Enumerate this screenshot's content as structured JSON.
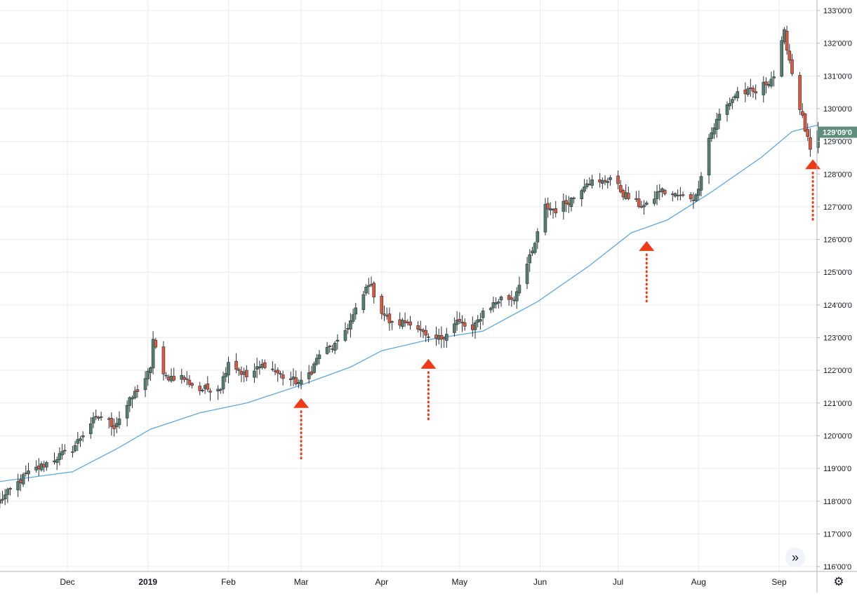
{
  "chart_data": {
    "type": "candlestick",
    "title": "",
    "x_tick_labels": [
      "Dec",
      "2019",
      "Feb",
      "Mar",
      "Apr",
      "May",
      "Jun",
      "Jul",
      "Aug",
      "Sep"
    ],
    "x_tick_dates": [
      "2018-12-01",
      "2019-01-01",
      "2019-02-01",
      "2019-03-01",
      "2019-04-01",
      "2019-05-01",
      "2019-06-01",
      "2019-07-01",
      "2019-08-01",
      "2019-09-01"
    ],
    "y_tick_labels": [
      "116'00'0",
      "117'00'0",
      "118'00'0",
      "119'00'0",
      "120'00'0",
      "121'00'0",
      "122'00'0",
      "123'00'0",
      "124'00'0",
      "125'00'0",
      "126'00'0",
      "127'00'0",
      "128'00'0",
      "129'00'0",
      "130'00'0",
      "131'00'0",
      "132'00'0",
      "133'00'0"
    ],
    "ylim": [
      116,
      133.2
    ],
    "grid": true,
    "last_price_label": "129'09'0",
    "up_color": "#53816b",
    "down_color": "#e0573a",
    "ma_color": "#5aa9e6",
    "marker_color": "#f03a17",
    "trend_points": [
      [
        "2018-11-05",
        118.0
      ],
      [
        "2018-11-15",
        118.8
      ],
      [
        "2018-11-26",
        119.3
      ],
      [
        "2018-12-03",
        119.6
      ],
      [
        "2018-12-10",
        120.4
      ],
      [
        "2018-12-14",
        120.6
      ],
      [
        "2018-12-19",
        120.3
      ],
      [
        "2018-12-27",
        121.3
      ],
      [
        "2019-01-02",
        122.0
      ],
      [
        "2019-01-03",
        123.0
      ],
      [
        "2019-01-07",
        121.8
      ],
      [
        "2019-01-14",
        121.8
      ],
      [
        "2019-01-21",
        121.4
      ],
      [
        "2019-01-29",
        121.5
      ],
      [
        "2019-02-01",
        122.3
      ],
      [
        "2019-02-08",
        121.8
      ],
      [
        "2019-02-15",
        122.2
      ],
      [
        "2019-02-22",
        121.8
      ],
      [
        "2019-03-01",
        121.6
      ],
      [
        "2019-03-05",
        122.0
      ],
      [
        "2019-03-08",
        122.5
      ],
      [
        "2019-03-15",
        122.8
      ],
      [
        "2019-03-20",
        123.5
      ],
      [
        "2019-03-25",
        124.3
      ],
      [
        "2019-03-27",
        124.7
      ],
      [
        "2019-04-01",
        123.8
      ],
      [
        "2019-04-05",
        123.4
      ],
      [
        "2019-04-12",
        123.5
      ],
      [
        "2019-04-15",
        123.3
      ],
      [
        "2019-04-19",
        122.9
      ],
      [
        "2019-04-24",
        123.0
      ],
      [
        "2019-04-30",
        123.5
      ],
      [
        "2019-05-06",
        123.2
      ],
      [
        "2019-05-10",
        123.8
      ],
      [
        "2019-05-17",
        124.2
      ],
      [
        "2019-05-22",
        124.2
      ],
      [
        "2019-05-24",
        124.7
      ],
      [
        "2019-05-29",
        125.6
      ],
      [
        "2019-06-03",
        127.0
      ],
      [
        "2019-06-07",
        126.9
      ],
      [
        "2019-06-14",
        127.3
      ],
      [
        "2019-06-19",
        127.8
      ],
      [
        "2019-06-24",
        127.7
      ],
      [
        "2019-06-28",
        127.9
      ],
      [
        "2019-07-03",
        127.4
      ],
      [
        "2019-07-08",
        127.1
      ],
      [
        "2019-07-12",
        127.0
      ],
      [
        "2019-07-17",
        127.5
      ],
      [
        "2019-07-25",
        127.3
      ],
      [
        "2019-07-31",
        127.3
      ],
      [
        "2019-08-05",
        129.1
      ],
      [
        "2019-08-09",
        129.8
      ],
      [
        "2019-08-16",
        130.5
      ],
      [
        "2019-08-23",
        130.5
      ],
      [
        "2019-08-30",
        131.0
      ],
      [
        "2019-09-03",
        132.3
      ],
      [
        "2019-09-06",
        131.1
      ],
      [
        "2019-09-10",
        129.7
      ],
      [
        "2019-09-13",
        128.7
      ],
      [
        "2019-09-16",
        129.2
      ]
    ],
    "ma_points": [
      [
        "2018-11-05",
        118.6
      ],
      [
        "2018-12-03",
        118.9
      ],
      [
        "2018-12-20",
        119.6
      ],
      [
        "2019-01-02",
        120.2
      ],
      [
        "2019-01-21",
        120.7
      ],
      [
        "2019-02-08",
        121.0
      ],
      [
        "2019-03-01",
        121.55
      ],
      [
        "2019-03-20",
        122.1
      ],
      [
        "2019-04-01",
        122.6
      ],
      [
        "2019-04-20",
        122.95
      ],
      [
        "2019-05-10",
        123.2
      ],
      [
        "2019-05-31",
        124.1
      ],
      [
        "2019-06-20",
        125.2
      ],
      [
        "2019-07-06",
        126.2
      ],
      [
        "2019-07-20",
        126.6
      ],
      [
        "2019-08-05",
        127.4
      ],
      [
        "2019-08-25",
        128.5
      ],
      [
        "2019-09-06",
        129.3
      ],
      [
        "2019-09-16",
        129.5
      ]
    ],
    "markers": [
      {
        "date": "2019-03-01",
        "price": 121.0
      },
      {
        "date": "2019-04-19",
        "price": 122.2
      },
      {
        "date": "2019-07-12",
        "price": 125.8
      },
      {
        "date": "2019-09-14",
        "price": 128.3
      }
    ]
  },
  "controls": {
    "scroll_label": "»",
    "settings_label": "⚙"
  }
}
